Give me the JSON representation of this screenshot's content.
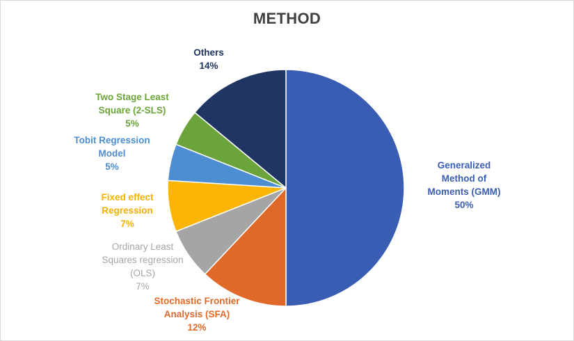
{
  "chart_data": {
    "type": "pie",
    "title": "METHOD",
    "slices": [
      {
        "label_lines": [
          "Generalized",
          "Method of",
          "Moments (GMM)"
        ],
        "pct_text": "50%",
        "value": 50,
        "color": "#3a5db4"
      },
      {
        "label_lines": [
          "Stochastic Frontier",
          "Analysis (SFA)"
        ],
        "pct_text": "12%",
        "value": 12,
        "color": "#e0692a"
      },
      {
        "label_lines": [
          "Ordinary Least",
          "Squares regression",
          "(OLS)"
        ],
        "pct_text": "7%",
        "value": 7,
        "color": "#a5a5a5"
      },
      {
        "label_lines": [
          "Fixed effect",
          "Regression"
        ],
        "pct_text": "7%",
        "value": 7,
        "color": "#fbb506"
      },
      {
        "label_lines": [
          "Tobit Regression",
          "Model"
        ],
        "pct_text": "5%",
        "value": 5,
        "color": "#4c8ed1"
      },
      {
        "label_lines": [
          "Two Stage Least",
          "Square (2-SLS)"
        ],
        "pct_text": "5%",
        "value": 5,
        "color": "#6ba43a"
      },
      {
        "label_lines": [
          "Others"
        ],
        "pct_text": "14%",
        "value": 14,
        "color": "#1f3563"
      }
    ],
    "label_colors": [
      "#3a5db4",
      "#e0692a",
      "#a5a5a5",
      "#f7b000",
      "#4c8ed1",
      "#6ba43a",
      "#1f3563"
    ],
    "legend": "none"
  }
}
